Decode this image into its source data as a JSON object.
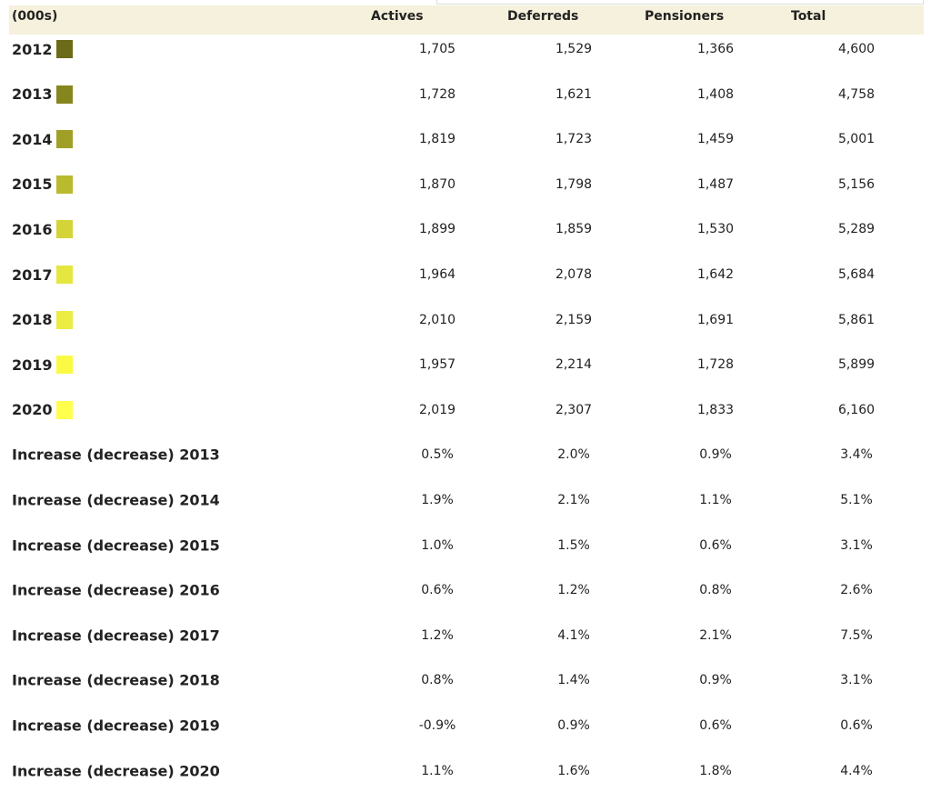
{
  "table": {
    "header": [
      "(000s)",
      "Actives",
      "Deferreds",
      "Pensioners",
      "Total"
    ],
    "rows": [
      {
        "label": "2012",
        "swatch": "#6b6b1a",
        "cells": [
          "1,705",
          "1,529",
          "1,366",
          "4,600"
        ]
      },
      {
        "label": "2013",
        "swatch": "#86861f",
        "cells": [
          "1,728",
          "1,621",
          "1,408",
          "4,758"
        ]
      },
      {
        "label": "2014",
        "swatch": "#a0a028",
        "cells": [
          "1,819",
          "1,723",
          "1,459",
          "5,001"
        ]
      },
      {
        "label": "2015",
        "swatch": "#baba2f",
        "cells": [
          "1,870",
          "1,798",
          "1,487",
          "5,156"
        ]
      },
      {
        "label": "2016",
        "swatch": "#d4d438",
        "cells": [
          "1,899",
          "1,859",
          "1,530",
          "5,289"
        ]
      },
      {
        "label": "2017",
        "swatch": "#e6e640",
        "cells": [
          "1,964",
          "2,078",
          "1,642",
          "5,684"
        ]
      },
      {
        "label": "2018",
        "swatch": "#ecec44",
        "cells": [
          "2,010",
          "2,159",
          "1,691",
          "5,861"
        ]
      },
      {
        "label": "2019",
        "swatch": "#fafa45",
        "cells": [
          "1,957",
          "2,214",
          "1,728",
          "5,899"
        ]
      },
      {
        "label": "2020",
        "swatch": "#ffff4d",
        "cells": [
          "2,019",
          "2,307",
          "1,833",
          "6,160"
        ]
      },
      {
        "label": "Increase (decrease) 2013",
        "cells": [
          "0.5%",
          "2.0%",
          "0.9%",
          "3.4%"
        ]
      },
      {
        "label": "Increase (decrease) 2014",
        "cells": [
          "1.9%",
          "2.1%",
          "1.1%",
          "5.1%"
        ]
      },
      {
        "label": "Increase (decrease) 2015",
        "cells": [
          "1.0%",
          "1.5%",
          "0.6%",
          "3.1%"
        ]
      },
      {
        "label": "Increase (decrease) 2016",
        "cells": [
          "0.6%",
          "1.2%",
          "0.8%",
          "2.6%"
        ]
      },
      {
        "label": "Increase (decrease) 2017",
        "cells": [
          "1.2%",
          "4.1%",
          "2.1%",
          "7.5%"
        ]
      },
      {
        "label": "Increase (decrease) 2018",
        "cells": [
          "0.8%",
          "1.4%",
          "0.9%",
          "3.1%"
        ]
      },
      {
        "label": "Increase (decrease) 2019",
        "cells": [
          "-0.9%",
          "0.9%",
          "0.6%",
          "0.6%"
        ]
      },
      {
        "label": "Increase (decrease) 2020",
        "cells": [
          "1.1%",
          "1.6%",
          "1.8%",
          "4.4%"
        ]
      }
    ]
  }
}
